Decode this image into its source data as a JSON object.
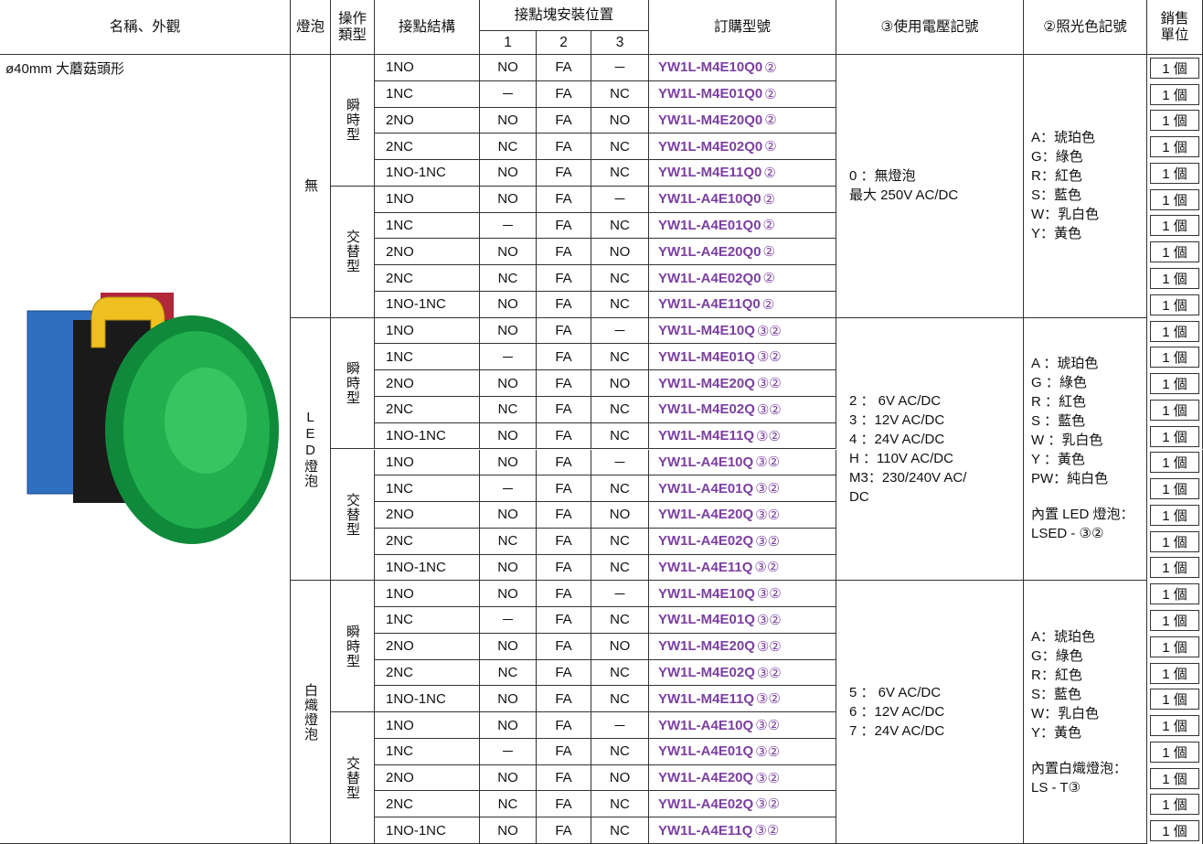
{
  "header": {
    "name": "名稱、外觀",
    "bulb": "燈泡",
    "op_type": "操作類型",
    "contact": "接點結構",
    "position": "接點塊安裝位置",
    "pos_cols": [
      "1",
      "2",
      "3"
    ],
    "order": "訂購型號",
    "voltage": "③使用電壓記號",
    "color": "②照光色記號",
    "unit": "銷售單位"
  },
  "product": {
    "name": "ø40mm 大蘑菇頭形"
  },
  "groups": [
    {
      "bulb": "無",
      "voltage_lines": [
        "0 ：無燈泡",
        "最大 250V AC/DC"
      ],
      "color_lines": [
        "A：琥珀色",
        "G：綠色",
        "R：紅色",
        "S：藍色",
        "W：乳白色",
        "Y：黃色"
      ],
      "color_note": [],
      "subgroups": [
        {
          "op": "瞬時型",
          "rows": [
            [
              "1NO",
              "NO",
              "FA",
              "－",
              "YW1L-M4E10Q0",
              "②",
              "1 個"
            ],
            [
              "1NC",
              "－",
              "FA",
              "NC",
              "YW1L-M4E01Q0",
              "②",
              "1 個"
            ],
            [
              "2NO",
              "NO",
              "FA",
              "NO",
              "YW1L-M4E20Q0",
              "②",
              "1 個"
            ],
            [
              "2NC",
              "NC",
              "FA",
              "NC",
              "YW1L-M4E02Q0",
              "②",
              "1 個"
            ],
            [
              "1NO-1NC",
              "NO",
              "FA",
              "NC",
              "YW1L-M4E11Q0",
              "②",
              "1 個"
            ]
          ]
        },
        {
          "op": "交替型",
          "rows": [
            [
              "1NO",
              "NO",
              "FA",
              "－",
              "YW1L-A4E10Q0",
              "②",
              "1 個"
            ],
            [
              "1NC",
              "－",
              "FA",
              "NC",
              "YW1L-A4E01Q0",
              "②",
              "1 個"
            ],
            [
              "2NO",
              "NO",
              "FA",
              "NO",
              "YW1L-A4E20Q0",
              "②",
              "1 個"
            ],
            [
              "2NC",
              "NC",
              "FA",
              "NC",
              "YW1L-A4E02Q0",
              "②",
              "1 個"
            ],
            [
              "1NO-1NC",
              "NO",
              "FA",
              "NC",
              "YW1L-A4E11Q0",
              "②",
              "1 個"
            ]
          ]
        }
      ]
    },
    {
      "bulb": "LED燈泡",
      "voltage_lines": [
        "2 ： 6V AC/DC",
        "3 ：12V AC/DC",
        "4 ：24V AC/DC",
        "H ：110V AC/DC",
        "M3：230/240V AC/",
        "DC"
      ],
      "color_lines": [
        "A ：琥珀色",
        "G ：綠色",
        "R ：紅色",
        "S ：藍色",
        "W ：乳白色",
        "Y ：黃色",
        "PW：純白色"
      ],
      "color_note": [
        "內置 LED 燈泡：",
        "LSED - ③②"
      ],
      "subgroups": [
        {
          "op": "瞬時型",
          "rows": [
            [
              "1NO",
              "NO",
              "FA",
              "－",
              "YW1L-M4E10Q",
              "③②",
              "1 個"
            ],
            [
              "1NC",
              "－",
              "FA",
              "NC",
              "YW1L-M4E01Q",
              "③②",
              "1 個"
            ],
            [
              "2NO",
              "NO",
              "FA",
              "NO",
              "YW1L-M4E20Q",
              "③②",
              "1 個"
            ],
            [
              "2NC",
              "NC",
              "FA",
              "NC",
              "YW1L-M4E02Q",
              "③②",
              "1 個"
            ],
            [
              "1NO-1NC",
              "NO",
              "FA",
              "NC",
              "YW1L-M4E11Q",
              "③②",
              "1 個"
            ]
          ]
        },
        {
          "op": "交替型",
          "rows": [
            [
              "1NO",
              "NO",
              "FA",
              "－",
              "YW1L-A4E10Q",
              "③②",
              "1 個"
            ],
            [
              "1NC",
              "－",
              "FA",
              "NC",
              "YW1L-A4E01Q",
              "③②",
              "1 個"
            ],
            [
              "2NO",
              "NO",
              "FA",
              "NO",
              "YW1L-A4E20Q",
              "③②",
              "1 個"
            ],
            [
              "2NC",
              "NC",
              "FA",
              "NC",
              "YW1L-A4E02Q",
              "③②",
              "1 個"
            ],
            [
              "1NO-1NC",
              "NO",
              "FA",
              "NC",
              "YW1L-A4E11Q",
              "③②",
              "1 個"
            ]
          ]
        }
      ]
    },
    {
      "bulb": "白熾燈泡",
      "voltage_lines": [
        "5 ： 6V AC/DC",
        "6 ：12V AC/DC",
        "7 ：24V AC/DC"
      ],
      "color_lines": [
        "A：琥珀色",
        "G：綠色",
        "R：紅色",
        "S：藍色",
        "W：乳白色",
        "Y：黃色"
      ],
      "color_note": [
        "內置白熾燈泡：",
        "LS - T③"
      ],
      "subgroups": [
        {
          "op": "瞬時型",
          "rows": [
            [
              "1NO",
              "NO",
              "FA",
              "－",
              "YW1L-M4E10Q",
              "③②",
              "1 個"
            ],
            [
              "1NC",
              "－",
              "FA",
              "NC",
              "YW1L-M4E01Q",
              "③②",
              "1 個"
            ],
            [
              "2NO",
              "NO",
              "FA",
              "NO",
              "YW1L-M4E20Q",
              "③②",
              "1 個"
            ],
            [
              "2NC",
              "NC",
              "FA",
              "NC",
              "YW1L-M4E02Q",
              "③②",
              "1 個"
            ],
            [
              "1NO-1NC",
              "NO",
              "FA",
              "NC",
              "YW1L-M4E11Q",
              "③②",
              "1 個"
            ]
          ]
        },
        {
          "op": "交替型",
          "rows": [
            [
              "1NO",
              "NO",
              "FA",
              "－",
              "YW1L-A4E10Q",
              "③②",
              "1 個"
            ],
            [
              "1NC",
              "－",
              "FA",
              "NC",
              "YW1L-A4E01Q",
              "③②",
              "1 個"
            ],
            [
              "2NO",
              "NO",
              "FA",
              "NO",
              "YW1L-A4E20Q",
              "③②",
              "1 個"
            ],
            [
              "2NC",
              "NC",
              "FA",
              "NC",
              "YW1L-A4E02Q",
              "③②",
              "1 個"
            ],
            [
              "1NO-1NC",
              "NO",
              "FA",
              "NC",
              "YW1L-A4E11Q",
              "③②",
              "1 個"
            ]
          ]
        }
      ]
    }
  ]
}
